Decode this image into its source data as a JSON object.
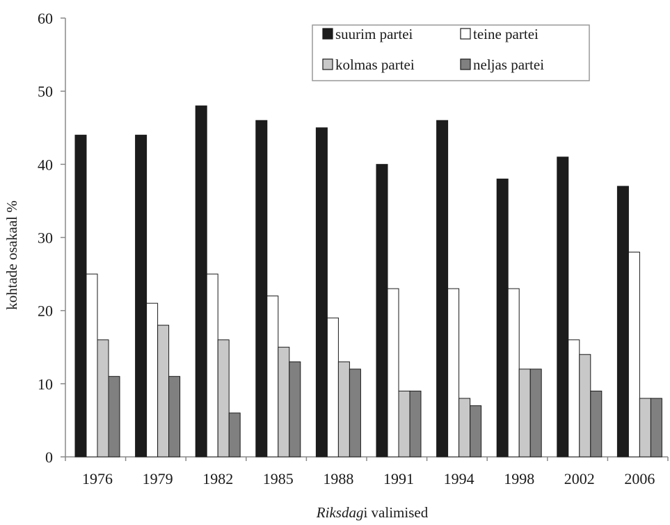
{
  "chart_data": {
    "type": "bar",
    "title": "",
    "xlabel_parts": [
      "Riksdag",
      "i valimised"
    ],
    "ylabel": "kohtade osakaal %",
    "ylim": [
      0,
      60
    ],
    "yticks": [
      0,
      10,
      20,
      30,
      40,
      50,
      60
    ],
    "grid": false,
    "legend_position": "top-right",
    "categories": [
      "1976",
      "1979",
      "1982",
      "1985",
      "1988",
      "1991",
      "1994",
      "1998",
      "2002",
      "2006"
    ],
    "series": [
      {
        "name": "suurim partei",
        "color": "#1c1c1c",
        "values": [
          44,
          44,
          48,
          46,
          45,
          40,
          46,
          38,
          41,
          37
        ]
      },
      {
        "name": "teine partei",
        "color": "#ffffff",
        "values": [
          25,
          21,
          25,
          22,
          19,
          23,
          23,
          23,
          16,
          28
        ]
      },
      {
        "name": "kolmas partei",
        "color": "#c8c8c8",
        "values": [
          16,
          18,
          16,
          15,
          13,
          9,
          8,
          12,
          14,
          8
        ]
      },
      {
        "name": "neljas partei",
        "color": "#808080",
        "values": [
          11,
          11,
          6,
          13,
          12,
          9,
          7,
          12,
          9,
          8
        ]
      }
    ]
  }
}
